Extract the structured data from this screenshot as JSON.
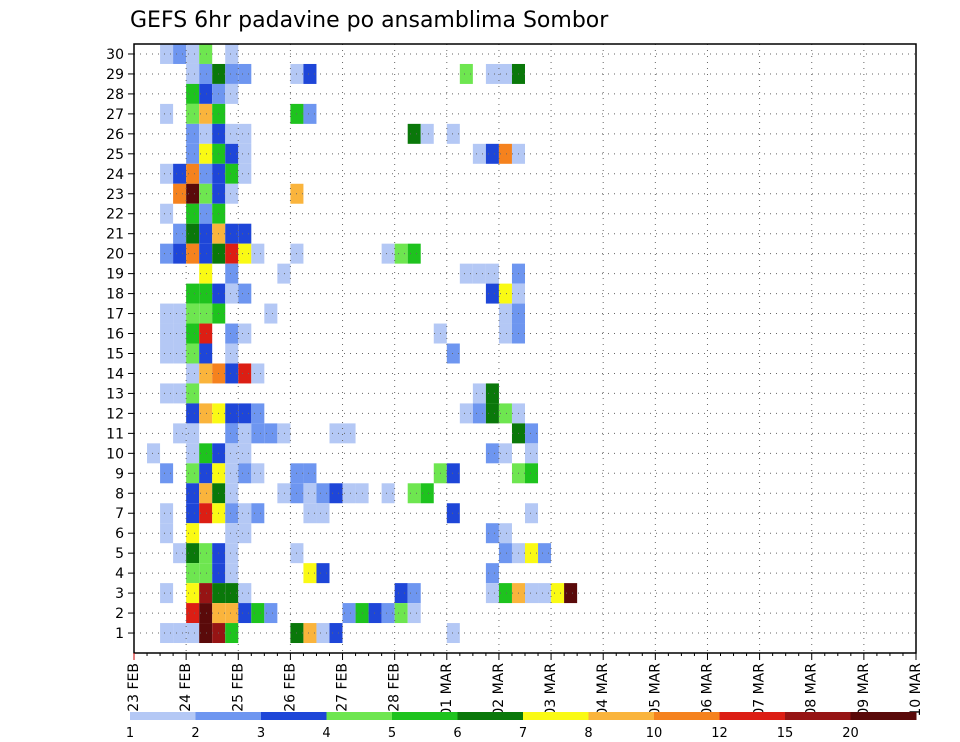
{
  "chart_data": {
    "type": "heatmap",
    "title": "GEFS 6hr padavine po ansamblima Sombor",
    "x_tick_labels": [
      "23 FEB",
      "24 FEB",
      "25 FEB",
      "26 FEB",
      "27 FEB",
      "28 FEB",
      "01 MAR",
      "02 MAR",
      "03 MAR",
      "04 MAR",
      "05 MAR",
      "06 MAR",
      "07 MAR",
      "08 MAR",
      "09 MAR",
      "10 MAR"
    ],
    "x_step_hours": 6,
    "y_tick_labels": [
      1,
      2,
      3,
      4,
      5,
      6,
      7,
      8,
      9,
      10,
      11,
      12,
      13,
      14,
      15,
      16,
      17,
      18,
      19,
      20,
      21,
      22,
      23,
      24,
      25,
      26,
      27,
      28,
      29,
      30
    ],
    "ylabel": "",
    "grid": true,
    "colorbar": {
      "labels": [
        1,
        2,
        3,
        4,
        5,
        6,
        7,
        8,
        10,
        12,
        15,
        20
      ],
      "colors": [
        "#b4c8f5",
        "#6e96f0",
        "#1e46d8",
        "#6ee650",
        "#1ec31e",
        "#0a780a",
        "#fafa14",
        "#fab43c",
        "#f5821e",
        "#dc1e14",
        "#961414",
        "#5a0a0a"
      ]
    },
    "cells": [
      [
        30,
        3,
        0
      ],
      [
        30,
        4,
        1
      ],
      [
        30,
        5,
        0
      ],
      [
        30,
        6,
        3
      ],
      [
        30,
        8,
        0
      ],
      [
        29,
        5,
        0
      ],
      [
        29,
        6,
        1
      ],
      [
        29,
        7,
        5
      ],
      [
        29,
        8,
        1
      ],
      [
        29,
        9,
        1
      ],
      [
        29,
        13,
        0
      ],
      [
        29,
        14,
        2
      ],
      [
        29,
        26,
        3
      ],
      [
        29,
        28,
        0
      ],
      [
        29,
        29,
        0
      ],
      [
        29,
        30,
        5
      ],
      [
        28,
        5,
        4
      ],
      [
        28,
        6,
        2
      ],
      [
        28,
        7,
        1
      ],
      [
        28,
        8,
        0
      ],
      [
        27,
        3,
        0
      ],
      [
        27,
        5,
        3
      ],
      [
        27,
        6,
        7
      ],
      [
        27,
        7,
        4
      ],
      [
        27,
        13,
        4
      ],
      [
        27,
        14,
        1
      ],
      [
        26,
        5,
        1
      ],
      [
        26,
        6,
        0
      ],
      [
        26,
        7,
        2
      ],
      [
        26,
        8,
        0
      ],
      [
        26,
        9,
        0
      ],
      [
        26,
        22,
        5
      ],
      [
        26,
        23,
        0
      ],
      [
        26,
        25,
        0
      ],
      [
        25,
        5,
        1
      ],
      [
        25,
        6,
        6
      ],
      [
        25,
        7,
        4
      ],
      [
        25,
        8,
        2
      ],
      [
        25,
        9,
        0
      ],
      [
        25,
        27,
        0
      ],
      [
        25,
        28,
        2
      ],
      [
        25,
        29,
        8
      ],
      [
        25,
        30,
        0
      ],
      [
        24,
        3,
        0
      ],
      [
        24,
        4,
        2
      ],
      [
        24,
        5,
        8
      ],
      [
        24,
        6,
        1
      ],
      [
        24,
        7,
        2
      ],
      [
        24,
        8,
        4
      ],
      [
        24,
        9,
        0
      ],
      [
        23,
        4,
        8
      ],
      [
        23,
        5,
        11
      ],
      [
        23,
        6,
        3
      ],
      [
        23,
        7,
        2
      ],
      [
        23,
        8,
        0
      ],
      [
        23,
        13,
        7
      ],
      [
        22,
        3,
        0
      ],
      [
        22,
        5,
        4
      ],
      [
        22,
        6,
        1
      ],
      [
        22,
        7,
        4
      ],
      [
        21,
        4,
        1
      ],
      [
        21,
        5,
        5
      ],
      [
        21,
        6,
        2
      ],
      [
        21,
        7,
        7
      ],
      [
        21,
        8,
        2
      ],
      [
        21,
        9,
        2
      ],
      [
        20,
        3,
        1
      ],
      [
        20,
        4,
        2
      ],
      [
        20,
        5,
        8
      ],
      [
        20,
        6,
        2
      ],
      [
        20,
        7,
        5
      ],
      [
        20,
        8,
        9
      ],
      [
        20,
        9,
        6
      ],
      [
        20,
        10,
        0
      ],
      [
        20,
        13,
        0
      ],
      [
        20,
        20,
        0
      ],
      [
        20,
        21,
        3
      ],
      [
        20,
        22,
        4
      ],
      [
        19,
        6,
        6
      ],
      [
        19,
        8,
        1
      ],
      [
        19,
        12,
        0
      ],
      [
        19,
        26,
        0
      ],
      [
        19,
        27,
        0
      ],
      [
        19,
        28,
        0
      ],
      [
        19,
        30,
        1
      ],
      [
        18,
        5,
        4
      ],
      [
        18,
        6,
        4
      ],
      [
        18,
        7,
        2
      ],
      [
        18,
        8,
        0
      ],
      [
        18,
        9,
        1
      ],
      [
        18,
        28,
        2
      ],
      [
        18,
        29,
        6
      ],
      [
        18,
        30,
        0
      ],
      [
        17,
        3,
        0
      ],
      [
        17,
        4,
        0
      ],
      [
        17,
        5,
        3
      ],
      [
        17,
        6,
        3
      ],
      [
        17,
        7,
        4
      ],
      [
        17,
        11,
        0
      ],
      [
        17,
        29,
        0
      ],
      [
        17,
        30,
        1
      ],
      [
        16,
        3,
        0
      ],
      [
        16,
        4,
        0
      ],
      [
        16,
        5,
        4
      ],
      [
        16,
        6,
        9
      ],
      [
        16,
        8,
        1
      ],
      [
        16,
        9,
        0
      ],
      [
        16,
        24,
        0
      ],
      [
        16,
        29,
        0
      ],
      [
        16,
        30,
        1
      ],
      [
        15,
        3,
        0
      ],
      [
        15,
        4,
        0
      ],
      [
        15,
        5,
        3
      ],
      [
        15,
        6,
        2
      ],
      [
        15,
        8,
        0
      ],
      [
        15,
        25,
        1
      ],
      [
        14,
        5,
        0
      ],
      [
        14,
        6,
        7
      ],
      [
        14,
        7,
        8
      ],
      [
        14,
        8,
        2
      ],
      [
        14,
        9,
        9
      ],
      [
        14,
        10,
        0
      ],
      [
        13,
        3,
        0
      ],
      [
        13,
        4,
        0
      ],
      [
        13,
        5,
        3
      ],
      [
        13,
        27,
        0
      ],
      [
        13,
        28,
        5
      ],
      [
        12,
        5,
        2
      ],
      [
        12,
        6,
        7
      ],
      [
        12,
        7,
        6
      ],
      [
        12,
        8,
        2
      ],
      [
        12,
        9,
        2
      ],
      [
        12,
        10,
        1
      ],
      [
        12,
        26,
        0
      ],
      [
        12,
        27,
        1
      ],
      [
        12,
        28,
        5
      ],
      [
        12,
        29,
        3
      ],
      [
        12,
        30,
        0
      ],
      [
        11,
        4,
        0
      ],
      [
        11,
        5,
        0
      ],
      [
        11,
        8,
        1
      ],
      [
        11,
        9,
        0
      ],
      [
        11,
        10,
        1
      ],
      [
        11,
        11,
        1
      ],
      [
        11,
        12,
        0
      ],
      [
        11,
        16,
        0
      ],
      [
        11,
        17,
        0
      ],
      [
        11,
        30,
        5
      ],
      [
        11,
        31,
        1
      ],
      [
        10,
        2,
        0
      ],
      [
        10,
        5,
        0
      ],
      [
        10,
        6,
        4
      ],
      [
        10,
        7,
        2
      ],
      [
        10,
        8,
        0
      ],
      [
        10,
        9,
        0
      ],
      [
        10,
        28,
        1
      ],
      [
        10,
        29,
        0
      ],
      [
        10,
        31,
        0
      ],
      [
        9,
        3,
        1
      ],
      [
        9,
        5,
        3
      ],
      [
        9,
        6,
        2
      ],
      [
        9,
        7,
        6
      ],
      [
        9,
        8,
        0
      ],
      [
        9,
        9,
        1
      ],
      [
        9,
        10,
        0
      ],
      [
        9,
        13,
        1
      ],
      [
        9,
        14,
        1
      ],
      [
        9,
        24,
        3
      ],
      [
        9,
        25,
        2
      ],
      [
        9,
        30,
        3
      ],
      [
        9,
        31,
        4
      ],
      [
        8,
        5,
        2
      ],
      [
        8,
        6,
        7
      ],
      [
        8,
        7,
        5
      ],
      [
        8,
        8,
        0
      ],
      [
        8,
        12,
        0
      ],
      [
        8,
        13,
        1
      ],
      [
        8,
        14,
        0
      ],
      [
        8,
        15,
        1
      ],
      [
        8,
        16,
        2
      ],
      [
        8,
        17,
        0
      ],
      [
        8,
        18,
        0
      ],
      [
        8,
        20,
        0
      ],
      [
        8,
        22,
        3
      ],
      [
        8,
        23,
        4
      ],
      [
        7,
        3,
        0
      ],
      [
        7,
        5,
        2
      ],
      [
        7,
        6,
        9
      ],
      [
        7,
        7,
        6
      ],
      [
        7,
        8,
        1
      ],
      [
        7,
        9,
        0
      ],
      [
        7,
        10,
        1
      ],
      [
        7,
        14,
        0
      ],
      [
        7,
        15,
        0
      ],
      [
        7,
        25,
        2
      ],
      [
        7,
        31,
        0
      ],
      [
        6,
        3,
        0
      ],
      [
        6,
        5,
        6
      ],
      [
        6,
        8,
        0
      ],
      [
        6,
        9,
        0
      ],
      [
        6,
        28,
        1
      ],
      [
        6,
        29,
        0
      ],
      [
        5,
        4,
        0
      ],
      [
        5,
        5,
        5
      ],
      [
        5,
        6,
        3
      ],
      [
        5,
        7,
        2
      ],
      [
        5,
        8,
        0
      ],
      [
        5,
        13,
        0
      ],
      [
        5,
        29,
        1
      ],
      [
        5,
        30,
        0
      ],
      [
        5,
        31,
        6
      ],
      [
        5,
        32,
        1
      ],
      [
        4,
        5,
        3
      ],
      [
        4,
        6,
        3
      ],
      [
        4,
        7,
        2
      ],
      [
        4,
        8,
        0
      ],
      [
        4,
        14,
        6
      ],
      [
        4,
        15,
        2
      ],
      [
        4,
        28,
        1
      ],
      [
        3,
        3,
        0
      ],
      [
        3,
        5,
        6
      ],
      [
        3,
        6,
        10
      ],
      [
        3,
        7,
        5
      ],
      [
        3,
        8,
        5
      ],
      [
        3,
        9,
        0
      ],
      [
        3,
        21,
        2
      ],
      [
        3,
        22,
        1
      ],
      [
        3,
        28,
        0
      ],
      [
        3,
        29,
        4
      ],
      [
        3,
        30,
        7
      ],
      [
        3,
        31,
        0
      ],
      [
        3,
        32,
        0
      ],
      [
        3,
        33,
        6
      ],
      [
        3,
        34,
        11
      ],
      [
        2,
        5,
        9
      ],
      [
        2,
        6,
        11
      ],
      [
        2,
        7,
        7
      ],
      [
        2,
        8,
        7
      ],
      [
        2,
        9,
        2
      ],
      [
        2,
        10,
        4
      ],
      [
        2,
        11,
        1
      ],
      [
        2,
        17,
        1
      ],
      [
        2,
        18,
        4
      ],
      [
        2,
        19,
        2
      ],
      [
        2,
        20,
        1
      ],
      [
        2,
        21,
        3
      ],
      [
        2,
        22,
        0
      ],
      [
        1,
        3,
        0
      ],
      [
        1,
        4,
        0
      ],
      [
        1,
        5,
        0
      ],
      [
        1,
        6,
        11
      ],
      [
        1,
        7,
        10
      ],
      [
        1,
        8,
        4
      ],
      [
        1,
        13,
        5
      ],
      [
        1,
        14,
        7
      ],
      [
        1,
        15,
        0
      ],
      [
        1,
        16,
        2
      ],
      [
        1,
        25,
        0
      ]
    ]
  }
}
